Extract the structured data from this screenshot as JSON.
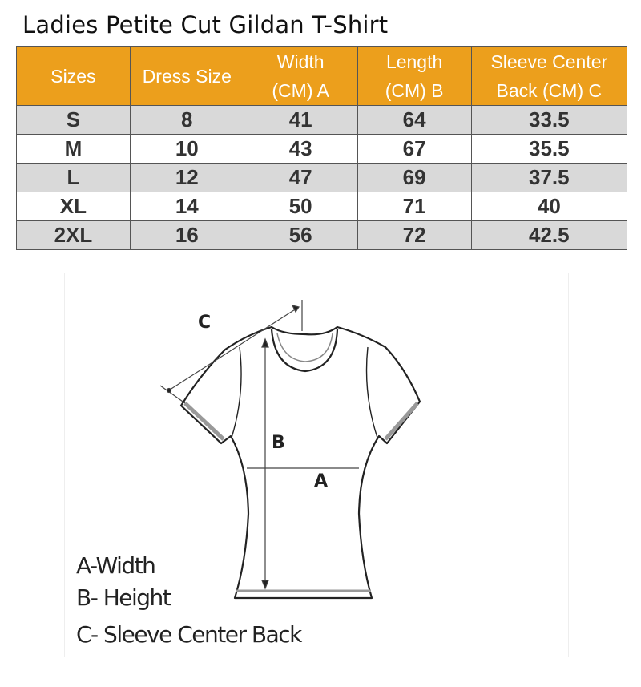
{
  "title": "Ladies Petite Cut Gildan T-Shirt",
  "table": {
    "header_color": "#ec9f1c",
    "columns": [
      {
        "line1": "Sizes",
        "line2": ""
      },
      {
        "line1": "Dress Size",
        "line2": ""
      },
      {
        "line1": "Width",
        "line2": "(CM) A"
      },
      {
        "line1": "Length",
        "line2": "(CM) B"
      },
      {
        "line1": "Sleeve Center",
        "line2": "Back (CM) C"
      }
    ],
    "rows": [
      [
        "S",
        "8",
        "41",
        "64",
        "33.5"
      ],
      [
        "M",
        "10",
        "43",
        "67",
        "35.5"
      ],
      [
        "L",
        "12",
        "47",
        "69",
        "37.5"
      ],
      [
        "XL",
        "14",
        "50",
        "71",
        "40"
      ],
      [
        "2XL",
        "16",
        "56",
        "72",
        "42.5"
      ]
    ]
  },
  "diagram": {
    "labels": {
      "a": "A",
      "b": "B",
      "c": "C"
    },
    "legend": [
      "A-Width",
      "B- Height",
      "C- Sleeve Center Back"
    ]
  }
}
